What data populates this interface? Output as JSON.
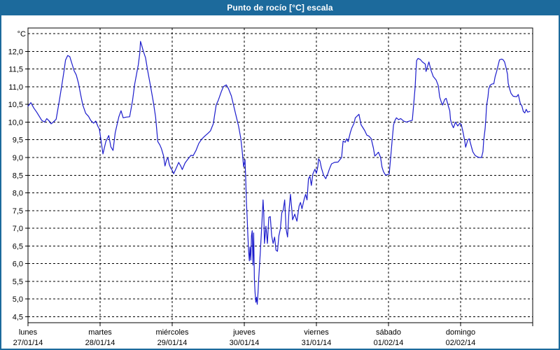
{
  "window": {
    "title": "Punto de rocío [°C] escala"
  },
  "colors": {
    "titlebar_bg": "#1c6a9c",
    "titlebar_text": "#ffffff",
    "border": "#1c6a9c",
    "plot_bg": "#ffffff",
    "grid": "#000000",
    "axis_text": "#000000",
    "line": "#1c1ccc"
  },
  "chart_data": {
    "type": "line",
    "title": "Punto de rocío [°C] escala",
    "ylabel": "°C",
    "ylim": [
      4.5,
      12.5
    ],
    "ytick_step": 0.5,
    "ytick_labels": [
      "12,0",
      "11,5",
      "11,0",
      "10,5",
      "10,0",
      "9,5",
      "9,0",
      "8,5",
      "8,0",
      "7,5",
      "7,0",
      "6,5",
      "6,0",
      "5,5",
      "5,0",
      "4,5"
    ],
    "grid": "dashed",
    "legend": "none",
    "x_axis": {
      "unit": "day",
      "days": [
        {
          "name": "lunes",
          "date": "27/01/14"
        },
        {
          "name": "martes",
          "date": "28/01/14"
        },
        {
          "name": "miércoles",
          "date": "29/01/14"
        },
        {
          "name": "jueves",
          "date": "30/01/14"
        },
        {
          "name": "viernes",
          "date": "31/01/14"
        },
        {
          "name": "sábado",
          "date": "01/02/14"
        },
        {
          "name": "domingo",
          "date": "02/02/14"
        }
      ]
    },
    "series": [
      {
        "name": "Punto de rocío [°C]",
        "color": "#1c1ccc",
        "points": [
          [
            0.0,
            10.45
          ],
          [
            0.04,
            10.55
          ],
          [
            0.08,
            10.4
          ],
          [
            0.12,
            10.28
          ],
          [
            0.16,
            10.15
          ],
          [
            0.19,
            10.05
          ],
          [
            0.23,
            10.0
          ],
          [
            0.26,
            10.1
          ],
          [
            0.29,
            10.04
          ],
          [
            0.32,
            9.95
          ],
          [
            0.35,
            10.0
          ],
          [
            0.39,
            10.08
          ],
          [
            0.43,
            10.55
          ],
          [
            0.47,
            11.05
          ],
          [
            0.5,
            11.45
          ],
          [
            0.52,
            11.75
          ],
          [
            0.55,
            11.88
          ],
          [
            0.58,
            11.85
          ],
          [
            0.61,
            11.65
          ],
          [
            0.64,
            11.45
          ],
          [
            0.67,
            11.33
          ],
          [
            0.7,
            11.1
          ],
          [
            0.73,
            10.78
          ],
          [
            0.76,
            10.48
          ],
          [
            0.8,
            10.25
          ],
          [
            0.84,
            10.16
          ],
          [
            0.87,
            10.05
          ],
          [
            0.91,
            9.97
          ],
          [
            0.94,
            10.03
          ],
          [
            0.97,
            9.88
          ],
          [
            0.99,
            9.8
          ],
          [
            1.04,
            9.1
          ],
          [
            1.08,
            9.45
          ],
          [
            1.12,
            9.62
          ],
          [
            1.15,
            9.3
          ],
          [
            1.18,
            9.2
          ],
          [
            1.21,
            9.7
          ],
          [
            1.26,
            10.15
          ],
          [
            1.29,
            10.32
          ],
          [
            1.32,
            10.12
          ],
          [
            1.36,
            10.14
          ],
          [
            1.41,
            10.15
          ],
          [
            1.45,
            10.6
          ],
          [
            1.48,
            11.07
          ],
          [
            1.51,
            11.4
          ],
          [
            1.53,
            11.62
          ],
          [
            1.55,
            11.95
          ],
          [
            1.56,
            12.28
          ],
          [
            1.58,
            12.15
          ],
          [
            1.6,
            12.0
          ],
          [
            1.63,
            11.82
          ],
          [
            1.66,
            11.45
          ],
          [
            1.7,
            11.01
          ],
          [
            1.74,
            10.55
          ],
          [
            1.77,
            10.14
          ],
          [
            1.8,
            9.45
          ],
          [
            1.83,
            9.35
          ],
          [
            1.85,
            9.25
          ],
          [
            1.88,
            9.05
          ],
          [
            1.9,
            8.76
          ],
          [
            1.92,
            8.92
          ],
          [
            1.94,
            9.0
          ],
          [
            1.96,
            8.8
          ],
          [
            1.98,
            8.7
          ],
          [
            2.0,
            8.64
          ],
          [
            2.02,
            8.54
          ],
          [
            2.06,
            8.72
          ],
          [
            2.09,
            8.86
          ],
          [
            2.12,
            8.75
          ],
          [
            2.14,
            8.66
          ],
          [
            2.18,
            8.85
          ],
          [
            2.22,
            8.96
          ],
          [
            2.26,
            9.06
          ],
          [
            2.29,
            9.05
          ],
          [
            2.33,
            9.2
          ],
          [
            2.37,
            9.4
          ],
          [
            2.41,
            9.52
          ],
          [
            2.45,
            9.6
          ],
          [
            2.5,
            9.69
          ],
          [
            2.53,
            9.75
          ],
          [
            2.57,
            9.95
          ],
          [
            2.61,
            10.48
          ],
          [
            2.64,
            10.62
          ],
          [
            2.68,
            10.85
          ],
          [
            2.71,
            11.0
          ],
          [
            2.75,
            11.05
          ],
          [
            2.78,
            10.95
          ],
          [
            2.82,
            10.74
          ],
          [
            2.85,
            10.48
          ],
          [
            2.89,
            10.14
          ],
          [
            2.92,
            9.89
          ],
          [
            2.95,
            9.55
          ],
          [
            2.97,
            9.2
          ],
          [
            2.99,
            8.74
          ],
          [
            3.01,
            8.94
          ],
          [
            3.02,
            8.36
          ],
          [
            3.03,
            7.71
          ],
          [
            3.04,
            7.3
          ],
          [
            3.05,
            6.79
          ],
          [
            3.06,
            6.35
          ],
          [
            3.07,
            6.08
          ],
          [
            3.08,
            6.47
          ],
          [
            3.09,
            6.1
          ],
          [
            3.1,
            6.79
          ],
          [
            3.11,
            6.93
          ],
          [
            3.12,
            5.96
          ],
          [
            3.13,
            6.87
          ],
          [
            3.14,
            5.57
          ],
          [
            3.15,
            5.18
          ],
          [
            3.16,
            4.91
          ],
          [
            3.17,
            5.05
          ],
          [
            3.18,
            4.85
          ],
          [
            3.19,
            5.18
          ],
          [
            3.2,
            5.57
          ],
          [
            3.22,
            6.27
          ],
          [
            3.24,
            6.98
          ],
          [
            3.26,
            7.8
          ],
          [
            3.27,
            7.44
          ],
          [
            3.28,
            6.57
          ],
          [
            3.3,
            7.06
          ],
          [
            3.32,
            6.57
          ],
          [
            3.34,
            7.31
          ],
          [
            3.36,
            7.33
          ],
          [
            3.38,
            6.79
          ],
          [
            3.4,
            6.57
          ],
          [
            3.42,
            6.75
          ],
          [
            3.44,
            6.38
          ],
          [
            3.46,
            6.35
          ],
          [
            3.48,
            6.79
          ],
          [
            3.5,
            6.98
          ],
          [
            3.52,
            7.44
          ],
          [
            3.54,
            7.51
          ],
          [
            3.56,
            7.8
          ],
          [
            3.58,
            6.98
          ],
          [
            3.6,
            6.75
          ],
          [
            3.62,
            7.5
          ],
          [
            3.64,
            7.96
          ],
          [
            3.66,
            7.5
          ],
          [
            3.67,
            7.24
          ],
          [
            3.7,
            7.4
          ],
          [
            3.73,
            7.2
          ],
          [
            3.76,
            7.63
          ],
          [
            3.78,
            7.73
          ],
          [
            3.8,
            7.55
          ],
          [
            3.83,
            7.82
          ],
          [
            3.85,
            7.96
          ],
          [
            3.87,
            7.8
          ],
          [
            3.89,
            8.4
          ],
          [
            3.91,
            8.47
          ],
          [
            3.93,
            8.21
          ],
          [
            3.95,
            8.53
          ],
          [
            3.98,
            8.67
          ],
          [
            4.0,
            8.55
          ],
          [
            4.02,
            8.75
          ],
          [
            4.03,
            8.96
          ],
          [
            4.05,
            8.9
          ],
          [
            4.07,
            8.7
          ],
          [
            4.1,
            8.5
          ],
          [
            4.13,
            8.4
          ],
          [
            4.16,
            8.55
          ],
          [
            4.18,
            8.67
          ],
          [
            4.21,
            8.82
          ],
          [
            4.25,
            8.86
          ],
          [
            4.3,
            8.87
          ],
          [
            4.35,
            9.0
          ],
          [
            4.37,
            9.46
          ],
          [
            4.4,
            9.43
          ],
          [
            4.42,
            9.53
          ],
          [
            4.44,
            9.45
          ],
          [
            4.47,
            9.7
          ],
          [
            4.49,
            9.83
          ],
          [
            4.52,
            9.96
          ],
          [
            4.54,
            10.12
          ],
          [
            4.57,
            10.18
          ],
          [
            4.59,
            10.22
          ],
          [
            4.62,
            9.92
          ],
          [
            4.64,
            9.86
          ],
          [
            4.67,
            9.76
          ],
          [
            4.7,
            9.63
          ],
          [
            4.73,
            9.6
          ],
          [
            4.76,
            9.53
          ],
          [
            4.79,
            9.27
          ],
          [
            4.81,
            9.04
          ],
          [
            4.84,
            9.1
          ],
          [
            4.86,
            9.15
          ],
          [
            4.89,
            9.0
          ],
          [
            4.91,
            8.73
          ],
          [
            4.93,
            8.6
          ],
          [
            4.96,
            8.5
          ],
          [
            4.99,
            8.52
          ],
          [
            5.01,
            8.53
          ],
          [
            5.03,
            9.0
          ],
          [
            5.05,
            9.46
          ],
          [
            5.07,
            9.92
          ],
          [
            5.09,
            10.05
          ],
          [
            5.11,
            10.12
          ],
          [
            5.14,
            10.07
          ],
          [
            5.17,
            10.1
          ],
          [
            5.21,
            10.03
          ],
          [
            5.25,
            10.0
          ],
          [
            5.29,
            10.03
          ],
          [
            5.33,
            10.05
          ],
          [
            5.35,
            10.5
          ],
          [
            5.37,
            11.0
          ],
          [
            5.38,
            11.4
          ],
          [
            5.39,
            11.74
          ],
          [
            5.41,
            11.8
          ],
          [
            5.44,
            11.77
          ],
          [
            5.47,
            11.7
          ],
          [
            5.51,
            11.64
          ],
          [
            5.52,
            11.43
          ],
          [
            5.56,
            11.7
          ],
          [
            5.59,
            11.46
          ],
          [
            5.62,
            11.29
          ],
          [
            5.66,
            11.19
          ],
          [
            5.69,
            11.03
          ],
          [
            5.71,
            10.71
          ],
          [
            5.73,
            10.58
          ],
          [
            5.75,
            10.48
          ],
          [
            5.78,
            10.64
          ],
          [
            5.8,
            10.67
          ],
          [
            5.83,
            10.45
          ],
          [
            5.85,
            10.32
          ],
          [
            5.86,
            10.07
          ],
          [
            5.88,
            9.93
          ],
          [
            5.9,
            9.84
          ],
          [
            5.93,
            10.0
          ],
          [
            5.96,
            9.89
          ],
          [
            5.99,
            9.97
          ],
          [
            6.01,
            9.93
          ],
          [
            6.03,
            9.75
          ],
          [
            6.05,
            9.55
          ],
          [
            6.06,
            9.43
          ],
          [
            6.07,
            9.29
          ],
          [
            6.1,
            9.5
          ],
          [
            6.12,
            9.53
          ],
          [
            6.15,
            9.3
          ],
          [
            6.17,
            9.16
          ],
          [
            6.2,
            9.06
          ],
          [
            6.23,
            9.02
          ],
          [
            6.26,
            9.0
          ],
          [
            6.29,
            9.0
          ],
          [
            6.31,
            9.16
          ],
          [
            6.32,
            9.48
          ],
          [
            6.34,
            9.81
          ],
          [
            6.35,
            10.07
          ],
          [
            6.36,
            10.46
          ],
          [
            6.38,
            10.71
          ],
          [
            6.39,
            10.94
          ],
          [
            6.41,
            11.04
          ],
          [
            6.44,
            11.08
          ],
          [
            6.46,
            11.08
          ],
          [
            6.48,
            11.29
          ],
          [
            6.5,
            11.43
          ],
          [
            6.52,
            11.6
          ],
          [
            6.54,
            11.76
          ],
          [
            6.57,
            11.78
          ],
          [
            6.59,
            11.76
          ],
          [
            6.61,
            11.7
          ],
          [
            6.63,
            11.54
          ],
          [
            6.65,
            11.35
          ],
          [
            6.66,
            11.1
          ],
          [
            6.68,
            10.94
          ],
          [
            6.7,
            10.81
          ],
          [
            6.73,
            10.73
          ],
          [
            6.76,
            10.72
          ],
          [
            6.78,
            10.72
          ],
          [
            6.8,
            10.78
          ],
          [
            6.83,
            10.51
          ],
          [
            6.85,
            10.46
          ],
          [
            6.87,
            10.3
          ],
          [
            6.89,
            10.26
          ],
          [
            6.91,
            10.36
          ],
          [
            6.93,
            10.28
          ],
          [
            6.96,
            10.3
          ]
        ]
      }
    ]
  }
}
